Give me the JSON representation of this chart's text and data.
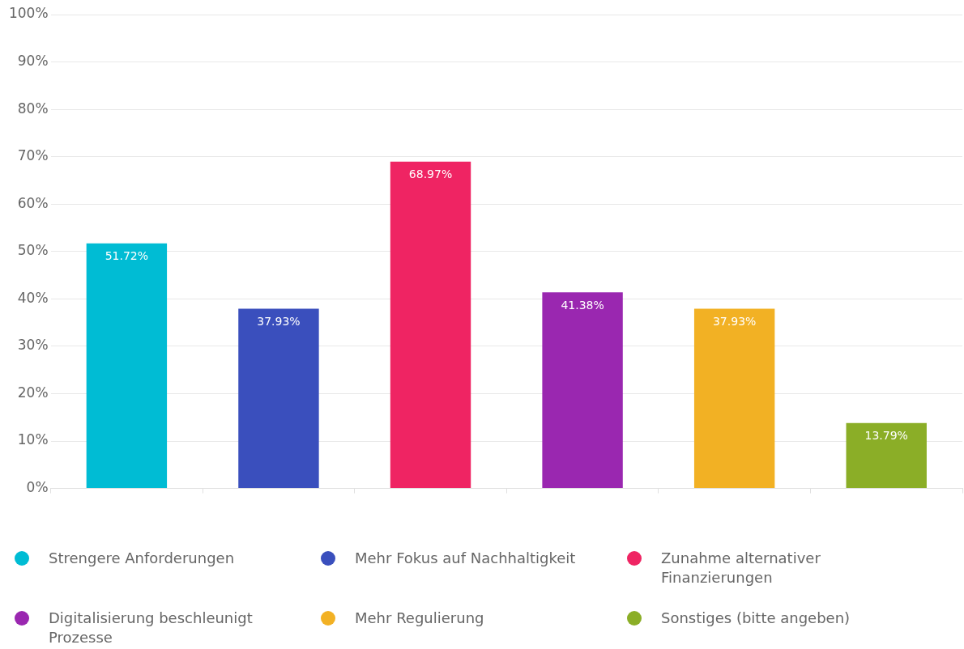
{
  "chart_data": {
    "type": "bar",
    "categories": [
      null,
      null,
      null,
      null,
      null,
      null
    ],
    "series": [
      {
        "name": "Strengere Anforderungen",
        "color": "#00bcd4",
        "values": [
          51.72,
          null,
          null,
          null,
          null,
          null
        ],
        "value_labels": [
          "51.72%",
          null,
          null,
          null,
          null,
          null
        ]
      },
      {
        "name": "Mehr Fokus auf Nachhaltigkeit",
        "color": "#3a4fbd",
        "values": [
          null,
          37.93,
          null,
          null,
          null,
          null
        ],
        "value_labels": [
          null,
          "37.93%",
          null,
          null,
          null,
          null
        ]
      },
      {
        "name": "Zunahme alternativer Finanzierungen",
        "color": "#ef2463",
        "values": [
          null,
          null,
          68.97,
          null,
          null,
          null
        ],
        "value_labels": [
          null,
          null,
          "68.97%",
          null,
          null,
          null
        ]
      },
      {
        "name": "Digitalisierung beschleunigt Prozesse",
        "color": "#9a27b0",
        "values": [
          null,
          null,
          null,
          41.38,
          null,
          null
        ],
        "value_labels": [
          null,
          null,
          null,
          "41.38%",
          null,
          null
        ]
      },
      {
        "name": "Mehr Regulierung",
        "color": "#f2b124",
        "values": [
          null,
          null,
          null,
          null,
          37.93,
          null
        ],
        "value_labels": [
          null,
          null,
          null,
          null,
          "37.93%",
          null
        ]
      },
      {
        "name": "Sonstiges (bitte angeben)",
        "color": "#8bae27",
        "values": [
          null,
          null,
          null,
          null,
          null,
          13.79
        ],
        "value_labels": [
          null,
          null,
          null,
          null,
          null,
          "13.79%"
        ]
      }
    ],
    "ylim": [
      0,
      100
    ],
    "yticks": [
      {
        "value": 0,
        "label": "0%"
      },
      {
        "value": 10,
        "label": "10%"
      },
      {
        "value": 20,
        "label": "20%"
      },
      {
        "value": 30,
        "label": "30%"
      },
      {
        "value": 40,
        "label": "40%"
      },
      {
        "value": 50,
        "label": "50%"
      },
      {
        "value": 60,
        "label": "60%"
      },
      {
        "value": 70,
        "label": "70%"
      },
      {
        "value": 80,
        "label": "80%"
      },
      {
        "value": 90,
        "label": "90%"
      },
      {
        "value": 100,
        "label": "100%"
      }
    ],
    "grid": "y",
    "legend": "bottom"
  }
}
